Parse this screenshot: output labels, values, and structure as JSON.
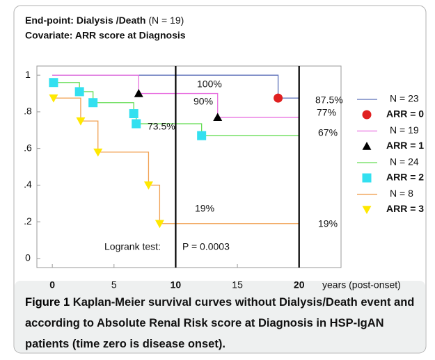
{
  "chart_data": {
    "type": "step",
    "title": "End-point: Dialysis /Death",
    "title_note": "(N = 19)",
    "subtitle": "Covariate: ARR score at Diagnosis",
    "xlabel": "years (post-onset)",
    "xlim": [
      -1.25,
      23.4
    ],
    "ylim": [
      -0.05,
      1.05
    ],
    "xticks": [
      0,
      5,
      10,
      15,
      20
    ],
    "yticks": [
      {
        "value": 1,
        "label": "1"
      },
      {
        "value": 0.8,
        "label": ".8"
      },
      {
        "value": 0.6,
        "label": ".6"
      },
      {
        "value": 0.4,
        "label": ".4"
      },
      {
        "value": 0.2,
        "label": ".2"
      },
      0
    ],
    "reference_lines_x": [
      10,
      20
    ],
    "series": [
      {
        "name": "N = 23",
        "color": "#5b6fb8",
        "x": [
          0,
          18.3,
          20
        ],
        "values": [
          1,
          0.875,
          0.875
        ],
        "marker": {
          "label": "ARR = 0",
          "color": "#e02020",
          "shape": "circle",
          "x": [
            18.3
          ],
          "values": [
            0.875
          ]
        }
      },
      {
        "name": "N = 19",
        "color": "#e870e0",
        "x": [
          0,
          7,
          13.4,
          20
        ],
        "values": [
          1,
          0.9,
          0.77,
          0.77
        ],
        "marker": {
          "label": "ARR = 1",
          "color": "#000000",
          "shape": "triangle-up",
          "x": [
            7,
            13.4
          ],
          "values": [
            0.9,
            0.77
          ]
        }
      },
      {
        "name": "N = 24",
        "color": "#66dd55",
        "x": [
          0,
          2.2,
          3.3,
          6.6,
          6.8,
          12.1,
          20
        ],
        "values": [
          0.96,
          0.91,
          0.85,
          0.79,
          0.735,
          0.67,
          0.67
        ],
        "marker": {
          "label": "ARR = 2",
          "color": "#33e0f0",
          "shape": "square",
          "x": [
            0.1,
            2.2,
            3.3,
            6.6,
            6.8,
            12.1
          ],
          "values": [
            0.96,
            0.91,
            0.85,
            0.79,
            0.735,
            0.67
          ]
        }
      },
      {
        "name": "N = 8",
        "color": "#f0a050",
        "x": [
          0,
          2.3,
          3.7,
          7.8,
          8.7,
          20
        ],
        "values": [
          0.875,
          0.75,
          0.58,
          0.4,
          0.19,
          0.19
        ],
        "marker": {
          "label": "ARR = 3",
          "color": "#ffe800",
          "shape": "triangle-down",
          "x": [
            0.1,
            2.3,
            3.7,
            7.8,
            8.7
          ],
          "values": [
            0.875,
            0.75,
            0.58,
            0.4,
            0.19
          ]
        }
      }
    ],
    "annotations": [
      "100%",
      "90%",
      "87.5%",
      "77%",
      "73.5%",
      "67%",
      "19%",
      "19%",
      "Logrank test:",
      "P = 0.0003"
    ],
    "caption_label": "Figure 1",
    "caption": "Kaplan-Meier survival curves without Dialysis/Death event and according to Absolute Renal Risk score at Diagnosis in HSP-IgAN patients (time zero is disease onset)."
  }
}
